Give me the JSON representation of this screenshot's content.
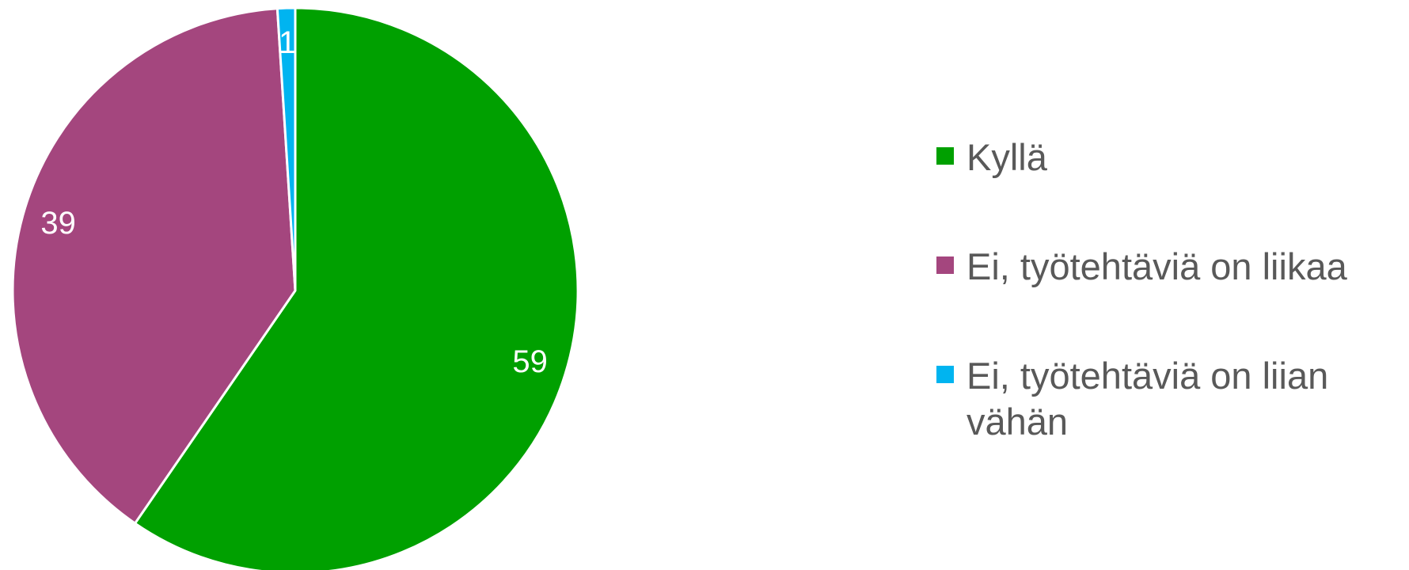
{
  "chart_data": {
    "type": "pie",
    "categories": [
      "Kyllä",
      "Ei, työtehtäviä on liikaa",
      "Ei, työtehtäviä on liian vähän"
    ],
    "values": [
      59,
      39,
      1
    ],
    "colors": [
      "#00a000",
      "#a4467e",
      "#00b4f0"
    ],
    "legend": "right"
  }
}
